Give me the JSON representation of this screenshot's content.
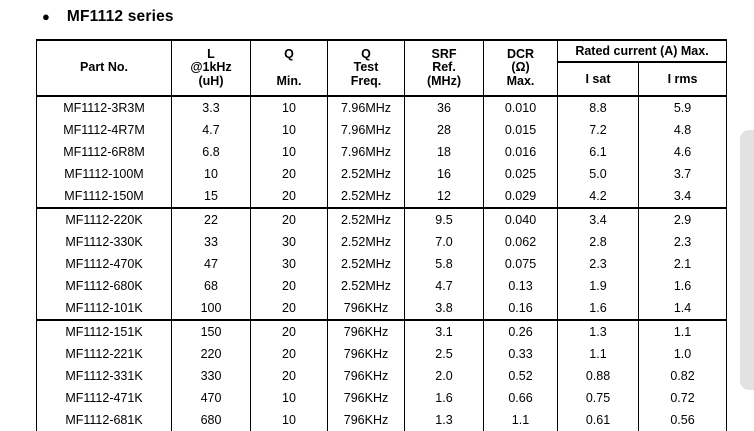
{
  "colors": {
    "background": "#ffffff",
    "text": "#000000",
    "table_border": "#000000",
    "side_tab": "#e2e2e2"
  },
  "title": {
    "bullet": "●",
    "text": "MF1112 series"
  },
  "table": {
    "header": {
      "part_no": "Part No.",
      "l_lines": [
        "L",
        "@1kHz",
        "(uH)"
      ],
      "q_min_lines": [
        "Q",
        "",
        "Min."
      ],
      "q_test_lines": [
        "Q",
        "Test",
        "Freq."
      ],
      "srf_lines": [
        "SRF",
        "Ref.",
        "(MHz)"
      ],
      "dcr_lines": [
        "DCR",
        "(Ω)",
        "Max."
      ],
      "rated_current": "Rated current (A) Max.",
      "i_sat": "I sat",
      "i_rms": "I rms"
    },
    "column_ids": [
      "part_no",
      "l_1khz_uh",
      "q_min",
      "q_test_freq",
      "srf_ref_mhz",
      "dcr_max",
      "i_sat",
      "i_rms"
    ],
    "rows": [
      [
        "MF1112-3R3M",
        "3.3",
        "10",
        "7.96MHz",
        "36",
        "0.010",
        "8.8",
        "5.9"
      ],
      [
        "MF1112-4R7M",
        "4.7",
        "10",
        "7.96MHz",
        "28",
        "0.015",
        "7.2",
        "4.8"
      ],
      [
        "MF1112-6R8M",
        "6.8",
        "10",
        "7.96MHz",
        "18",
        "0.016",
        "6.1",
        "4.6"
      ],
      [
        "MF1112-100M",
        "10",
        "20",
        "2.52MHz",
        "16",
        "0.025",
        "5.0",
        "3.7"
      ],
      [
        "MF1112-150M",
        "15",
        "20",
        "2.52MHz",
        "12",
        "0.029",
        "4.2",
        "3.4"
      ],
      [
        "MF1112-220K",
        "22",
        "20",
        "2.52MHz",
        "9.5",
        "0.040",
        "3.4",
        "2.9"
      ],
      [
        "MF1112-330K",
        "33",
        "30",
        "2.52MHz",
        "7.0",
        "0.062",
        "2.8",
        "2.3"
      ],
      [
        "MF1112-470K",
        "47",
        "30",
        "2.52MHz",
        "5.8",
        "0.075",
        "2.3",
        "2.1"
      ],
      [
        "MF1112-680K",
        "68",
        "20",
        "2.52MHz",
        "4.7",
        "0.13",
        "1.9",
        "1.6"
      ],
      [
        "MF1112-101K",
        "100",
        "20",
        "796KHz",
        "3.8",
        "0.16",
        "1.6",
        "1.4"
      ],
      [
        "MF1112-151K",
        "150",
        "20",
        "796KHz",
        "3.1",
        "0.26",
        "1.3",
        "1.1"
      ],
      [
        "MF1112-221K",
        "220",
        "20",
        "796KHz",
        "2.5",
        "0.33",
        "1.1",
        "1.0"
      ],
      [
        "MF1112-331K",
        "330",
        "20",
        "796KHz",
        "2.0",
        "0.52",
        "0.88",
        "0.82"
      ],
      [
        "MF1112-471K",
        "470",
        "10",
        "796KHz",
        "1.6",
        "0.66",
        "0.75",
        "0.72"
      ],
      [
        "MF1112-681K",
        "680",
        "10",
        "796KHz",
        "1.3",
        "1.1",
        "0.61",
        "0.56"
      ]
    ],
    "group_end_rows": [
      4,
      9,
      14
    ]
  }
}
